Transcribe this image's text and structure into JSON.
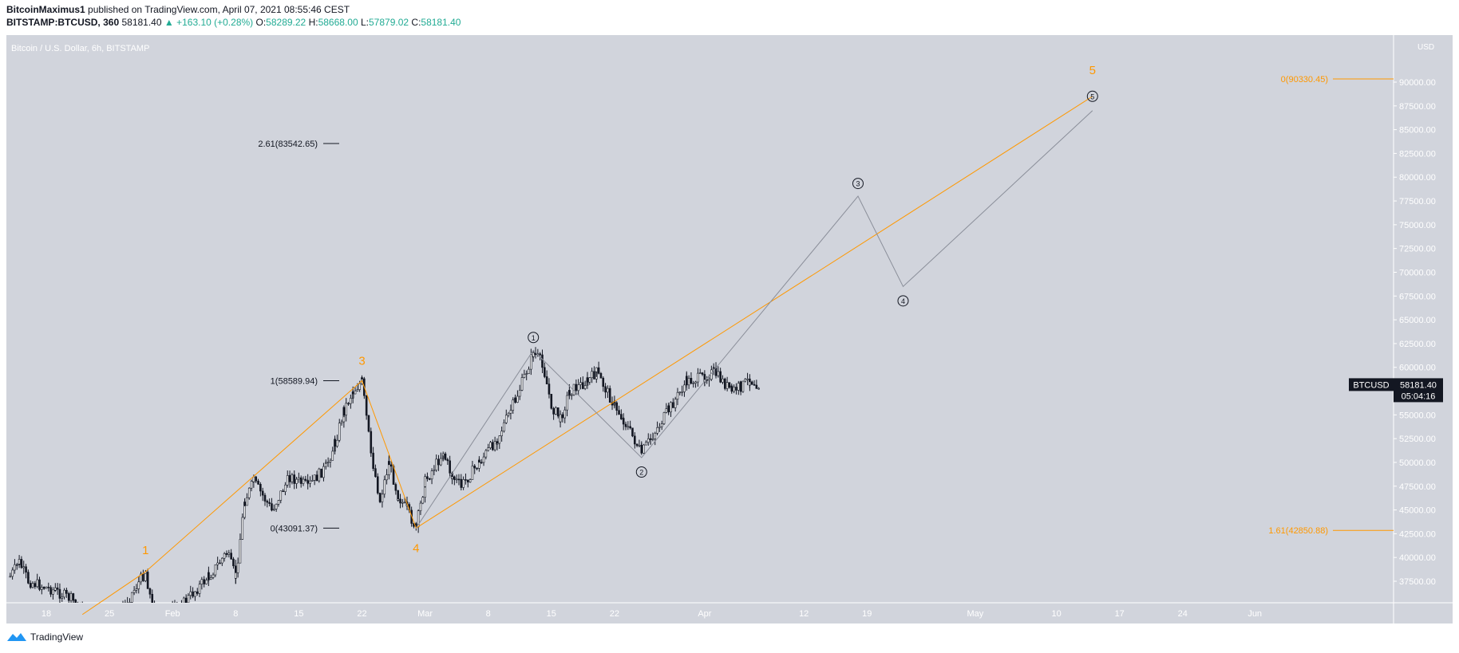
{
  "header": {
    "author": "BitcoinMaximus1",
    "published_text": "published on TradingView.com, April 07, 2021 08:55:46 CEST",
    "symbol_line": "BITSTAMP:BTCUSD, 360",
    "last": "58181.40",
    "change": "▲ +163.10 (+0.28%)",
    "o_label": "O:",
    "o": "58289.22",
    "h_label": "H:",
    "h": "58668.00",
    "l_label": "L:",
    "l": "57879.02",
    "c_label": "C:",
    "c": "58181.40"
  },
  "footer": {
    "brand": "TradingView"
  },
  "colors": {
    "plot_bg": "#d1d4dc",
    "orange": "#ff9800",
    "projection": "#8a8e99",
    "candle": "#131722"
  },
  "chart_data": {
    "type": "candlestick",
    "title": "Bitcoin / U.S. Dollar, 6h, BITSTAMP",
    "currency": "USD",
    "ylim": [
      35000,
      92500
    ],
    "y_ticks": [
      37500,
      40000,
      42500,
      45000,
      47500,
      50000,
      52500,
      55000,
      57500,
      60000,
      62500,
      65000,
      67500,
      70000,
      72500,
      75000,
      77500,
      80000,
      82500,
      85000,
      87500,
      90000
    ],
    "x_ticks": [
      {
        "label": "18",
        "date": "2021-01-18"
      },
      {
        "label": "25",
        "date": "2021-01-25"
      },
      {
        "label": "Feb",
        "date": "2021-02-01"
      },
      {
        "label": "8",
        "date": "2021-02-08"
      },
      {
        "label": "15",
        "date": "2021-02-15"
      },
      {
        "label": "22",
        "date": "2021-02-22"
      },
      {
        "label": "Mar",
        "date": "2021-03-01"
      },
      {
        "label": "8",
        "date": "2021-03-08"
      },
      {
        "label": "15",
        "date": "2021-03-15"
      },
      {
        "label": "22",
        "date": "2021-03-22"
      },
      {
        "label": "Apr",
        "date": "2021-04-01"
      },
      {
        "label": "12",
        "date": "2021-04-12"
      },
      {
        "label": "19",
        "date": "2021-04-19"
      },
      {
        "label": "May",
        "date": "2021-05-01"
      },
      {
        "label": "10",
        "date": "2021-05-10"
      },
      {
        "label": "17",
        "date": "2021-05-17"
      },
      {
        "label": "24",
        "date": "2021-05-24"
      },
      {
        "label": "Jun",
        "date": "2021-06-01"
      }
    ],
    "price_path": [
      {
        "date": "2021-01-14",
        "price": 38000
      },
      {
        "date": "2021-01-15",
        "price": 39500
      },
      {
        "date": "2021-01-16",
        "price": 37500
      },
      {
        "date": "2021-01-19",
        "price": 36500
      },
      {
        "date": "2021-01-21",
        "price": 35500
      },
      {
        "date": "2021-01-22",
        "price": 34000
      },
      {
        "date": "2021-01-25",
        "price": 32500
      },
      {
        "date": "2021-01-29",
        "price": 38500
      },
      {
        "date": "2021-01-30",
        "price": 33500
      },
      {
        "date": "2021-02-02",
        "price": 35000
      },
      {
        "date": "2021-02-05",
        "price": 38000
      },
      {
        "date": "2021-02-07",
        "price": 40500
      },
      {
        "date": "2021-02-08",
        "price": 38000
      },
      {
        "date": "2021-02-09",
        "price": 46000
      },
      {
        "date": "2021-02-10",
        "price": 48000
      },
      {
        "date": "2021-02-12",
        "price": 45000
      },
      {
        "date": "2021-02-14",
        "price": 48500
      },
      {
        "date": "2021-02-16",
        "price": 47500
      },
      {
        "date": "2021-02-18",
        "price": 49500
      },
      {
        "date": "2021-02-19",
        "price": 52000
      },
      {
        "date": "2021-02-20",
        "price": 55500
      },
      {
        "date": "2021-02-21",
        "price": 57500
      },
      {
        "date": "2021-02-22",
        "price": 58500
      },
      {
        "date": "2021-02-23",
        "price": 51000
      },
      {
        "date": "2021-02-24",
        "price": 46000
      },
      {
        "date": "2021-02-25",
        "price": 50000
      },
      {
        "date": "2021-02-26",
        "price": 46500
      },
      {
        "date": "2021-02-27",
        "price": 45000
      },
      {
        "date": "2021-02-28",
        "price": 43100
      },
      {
        "date": "2021-03-01",
        "price": 48000
      },
      {
        "date": "2021-03-03",
        "price": 51000
      },
      {
        "date": "2021-03-04",
        "price": 48500
      },
      {
        "date": "2021-03-05",
        "price": 47500
      },
      {
        "date": "2021-03-07",
        "price": 50000
      },
      {
        "date": "2021-03-09",
        "price": 52500
      },
      {
        "date": "2021-03-11",
        "price": 56500
      },
      {
        "date": "2021-03-13",
        "price": 61500
      },
      {
        "date": "2021-03-14",
        "price": 60500
      },
      {
        "date": "2021-03-15",
        "price": 56000
      },
      {
        "date": "2021-03-16",
        "price": 54500
      },
      {
        "date": "2021-03-17",
        "price": 57500
      },
      {
        "date": "2021-03-19",
        "price": 58500
      },
      {
        "date": "2021-03-20",
        "price": 59500
      },
      {
        "date": "2021-03-22",
        "price": 56000
      },
      {
        "date": "2021-03-23",
        "price": 54500
      },
      {
        "date": "2021-03-25",
        "price": 51000
      },
      {
        "date": "2021-03-26",
        "price": 52500
      },
      {
        "date": "2021-03-28",
        "price": 55500
      },
      {
        "date": "2021-03-30",
        "price": 58500
      },
      {
        "date": "2021-04-01",
        "price": 59000
      },
      {
        "date": "2021-04-02",
        "price": 59500
      },
      {
        "date": "2021-04-04",
        "price": 57500
      },
      {
        "date": "2021-04-05",
        "price": 58000
      },
      {
        "date": "2021-04-06",
        "price": 58700
      },
      {
        "date": "2021-04-07",
        "price": 58181
      }
    ],
    "last_price_label": {
      "symbol": "BTCUSD",
      "price": "58181.40",
      "countdown": "05:04:16"
    },
    "wave_degree_orange": [
      {
        "label": "1",
        "date": "2021-01-29",
        "price": 38500
      },
      {
        "label": "3",
        "date": "2021-02-22",
        "price": 58590
      },
      {
        "label": "4",
        "date": "2021-02-28",
        "price": 43091
      },
      {
        "label": "5",
        "date": "2021-05-14",
        "price": 88500
      }
    ],
    "wave_degree_circled": [
      {
        "label": "1",
        "date": "2021-03-13",
        "price": 61800
      },
      {
        "label": "2",
        "date": "2021-03-25",
        "price": 50500
      },
      {
        "label": "3",
        "date": "2021-04-18",
        "price": 78000
      },
      {
        "label": "4",
        "date": "2021-04-23",
        "price": 68500
      },
      {
        "label": "5",
        "date": "2021-05-14",
        "price": 87000
      }
    ],
    "fib_levels_black": [
      {
        "label": "2.61(83542.65)",
        "price": 83542.65
      },
      {
        "label": "1(58589.94)",
        "price": 58589.94
      },
      {
        "label": "0(43091.37)",
        "price": 43091.37
      }
    ],
    "fib_levels_orange": [
      {
        "label": "0(90330.45)",
        "price": 90330.45
      },
      {
        "label": "1.61(42850.88)",
        "price": 42850.88
      }
    ]
  }
}
